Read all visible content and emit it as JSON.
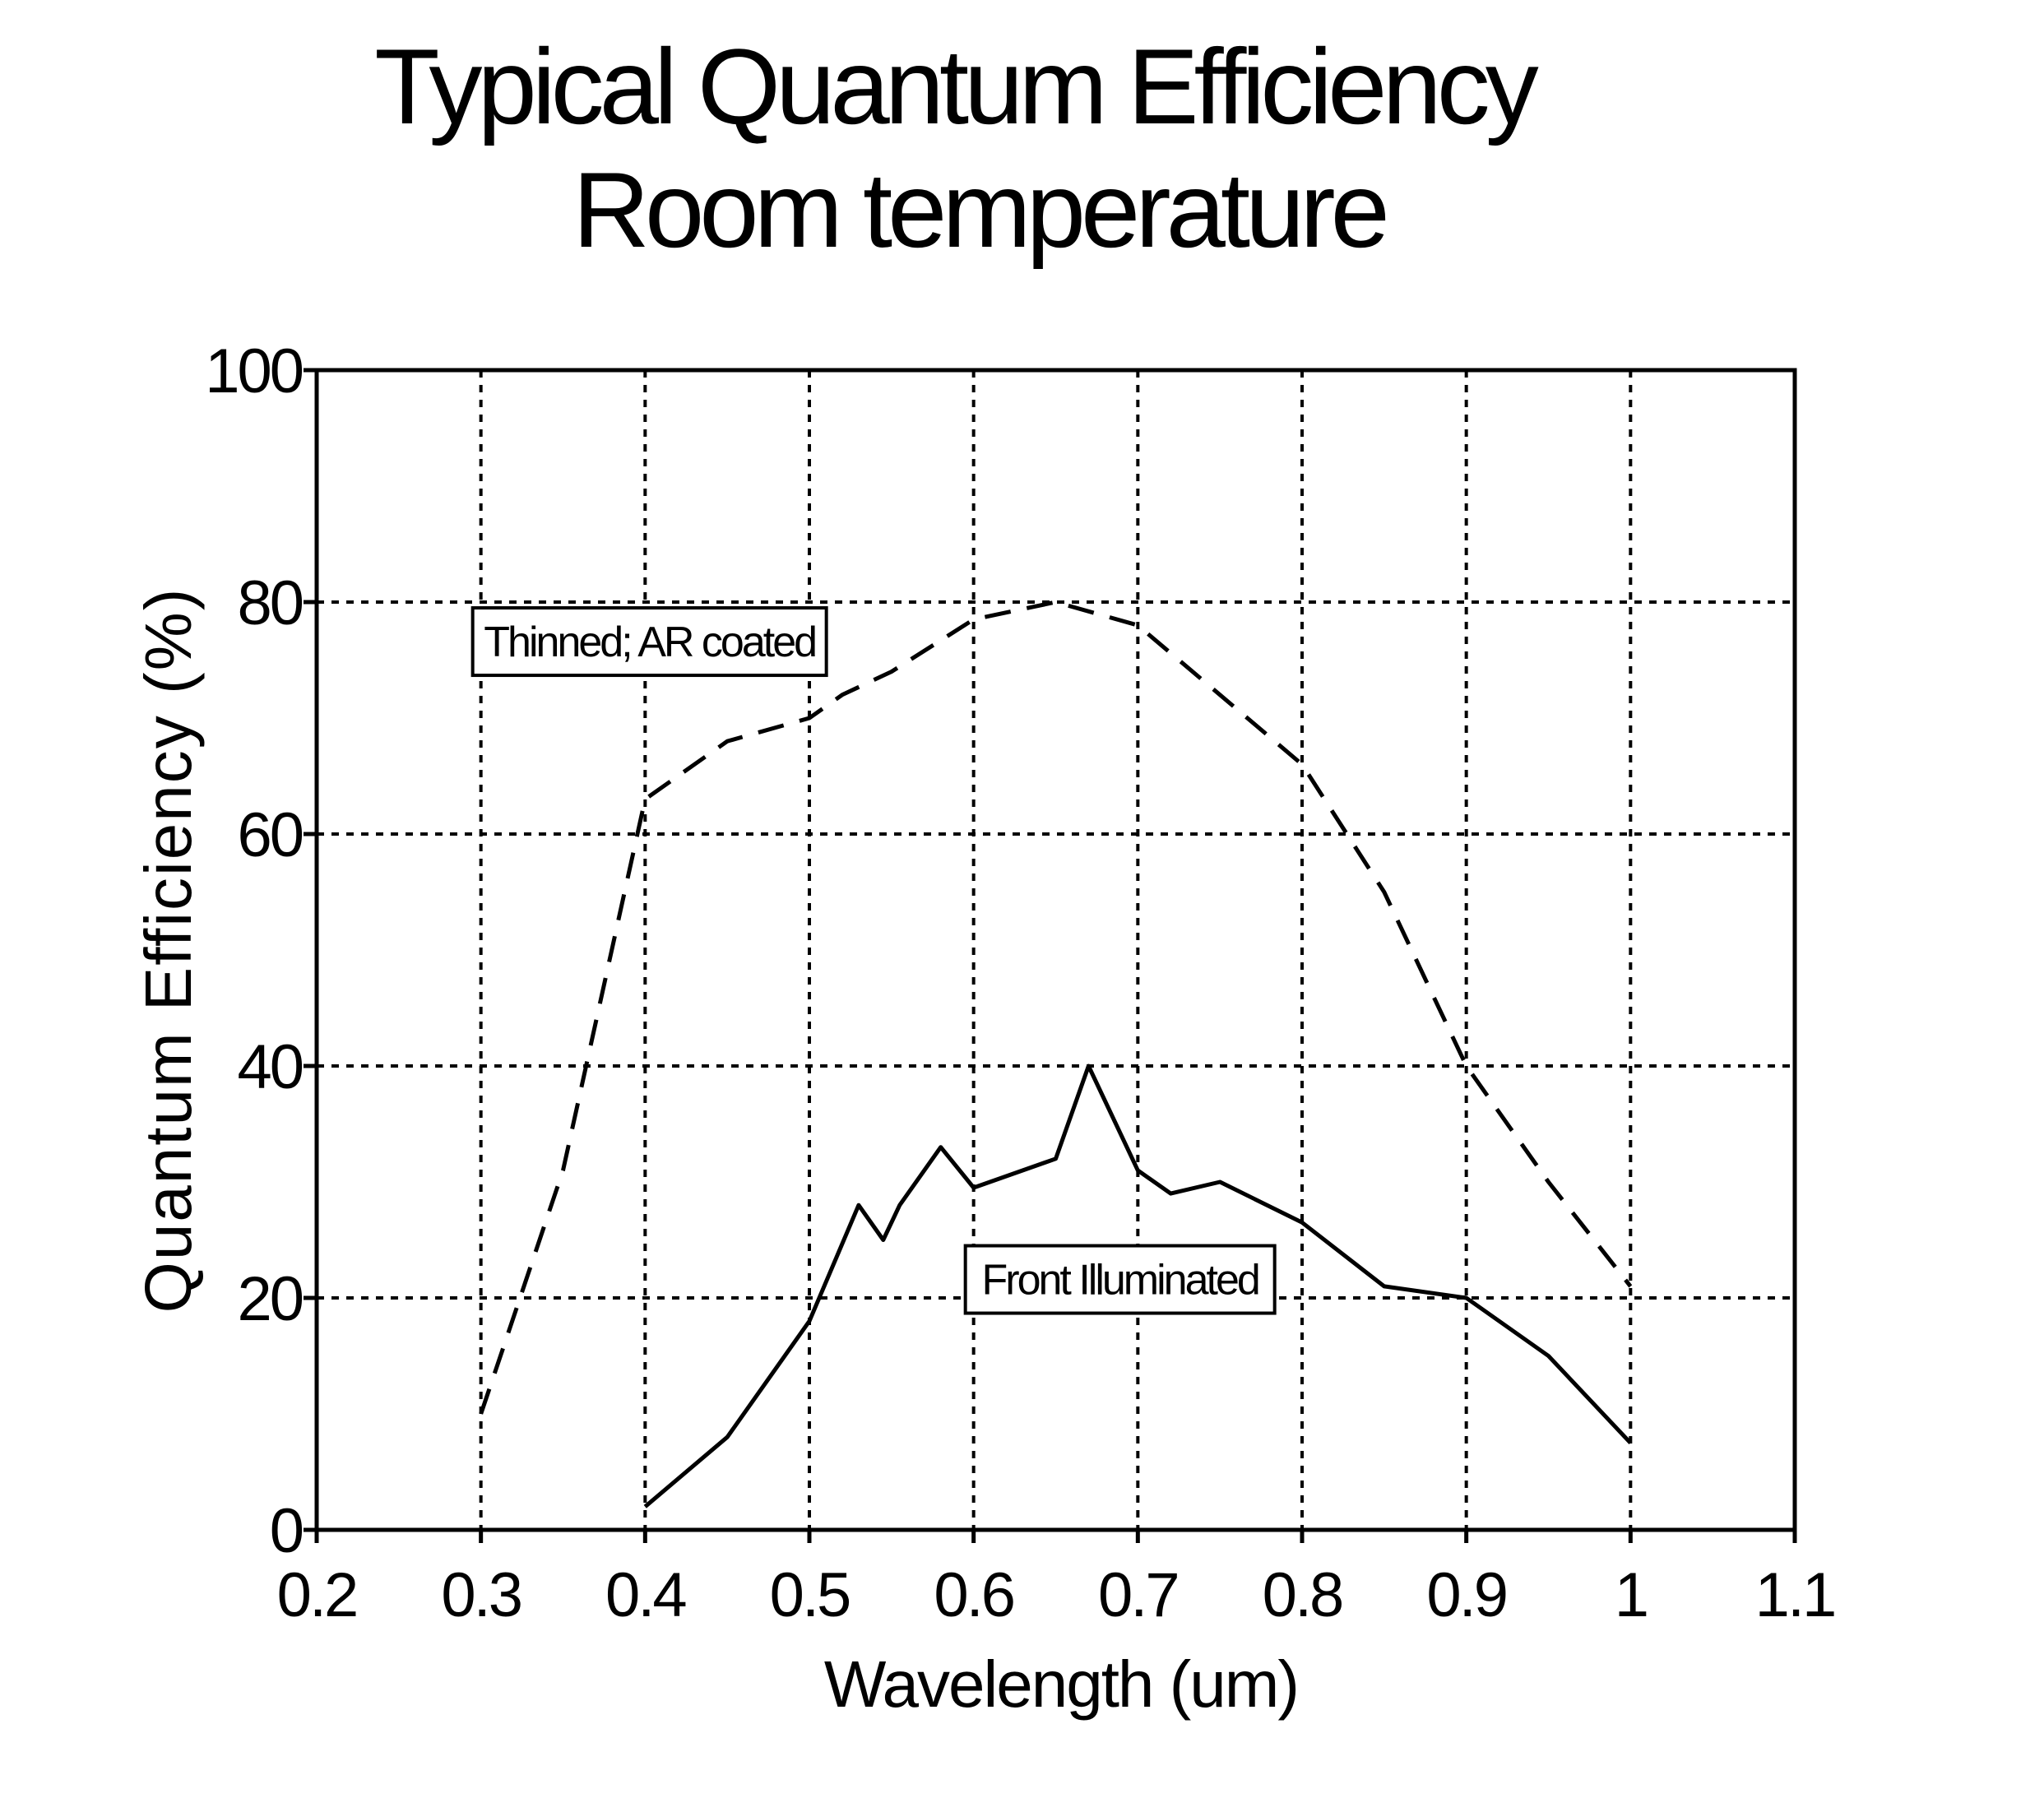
{
  "chart_data": {
    "type": "line",
    "title": "Typical Quantum Efficiency",
    "subtitle": "Room temperature",
    "xlabel": "Wavelength (um)",
    "ylabel": "Quantum Efficiency (%)",
    "xlim": [
      0.2,
      1.1
    ],
    "ylim": [
      0,
      100
    ],
    "x_ticks": [
      0.2,
      0.3,
      0.4,
      0.5,
      0.6,
      0.7,
      0.8,
      0.9,
      1.0,
      1.1
    ],
    "x_tick_labels": [
      "0.2",
      "0.3",
      "0.4",
      "0.5",
      "0.6",
      "0.7",
      "0.8",
      "0.9",
      "1",
      "1.1"
    ],
    "y_ticks": [
      0,
      20,
      40,
      60,
      80,
      100
    ],
    "y_tick_labels": [
      "0",
      "20",
      "40",
      "60",
      "80",
      "100"
    ],
    "grid": true,
    "legend": "none",
    "series": [
      {
        "name": "Thinned; AR coated",
        "style": "dashed",
        "color": "#000000",
        "x": [
          0.3,
          0.35,
          0.4,
          0.45,
          0.5,
          0.52,
          0.55,
          0.6,
          0.65,
          0.7,
          0.75,
          0.8,
          0.85,
          0.9,
          0.95,
          1.0
        ],
        "y": [
          10,
          31,
          63,
          68,
          70,
          72,
          74,
          78.5,
          80,
          78,
          72,
          66,
          55,
          40,
          30,
          21
        ]
      },
      {
        "name": "Front Illuminated",
        "style": "solid",
        "color": "#000000",
        "x": [
          0.4,
          0.45,
          0.5,
          0.53,
          0.545,
          0.555,
          0.58,
          0.6,
          0.65,
          0.67,
          0.7,
          0.72,
          0.75,
          0.8,
          0.85,
          0.9,
          0.95,
          1.0
        ],
        "y": [
          2,
          8,
          18,
          28,
          25,
          28,
          33,
          29.5,
          32,
          40,
          31,
          29,
          30,
          26.5,
          21,
          20,
          15,
          7.5
        ]
      }
    ],
    "annotations": [
      {
        "text": "Thinned; AR coated",
        "series": 0
      },
      {
        "text": "Front Illuminated",
        "series": 1
      }
    ]
  }
}
